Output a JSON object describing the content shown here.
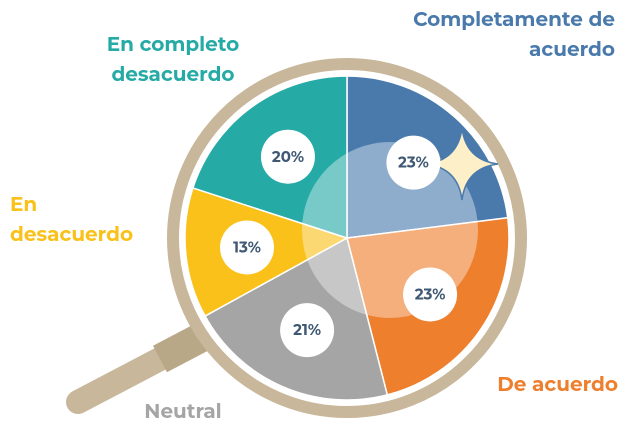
{
  "chart_data": {
    "type": "pie",
    "categories": [
      "Completamente de acuerdo",
      "De acuerdo",
      "Neutral",
      "En desacuerdo",
      "En completo desacuerdo"
    ],
    "values": [
      23,
      23,
      21,
      13,
      20
    ],
    "value_labels": [
      "23%",
      "23%",
      "21%",
      "13%",
      "20%"
    ],
    "colors": [
      "#4a7aab",
      "#ee7f2d",
      "#a5a5a5",
      "#f9c11a",
      "#26aaa6"
    ]
  }
}
